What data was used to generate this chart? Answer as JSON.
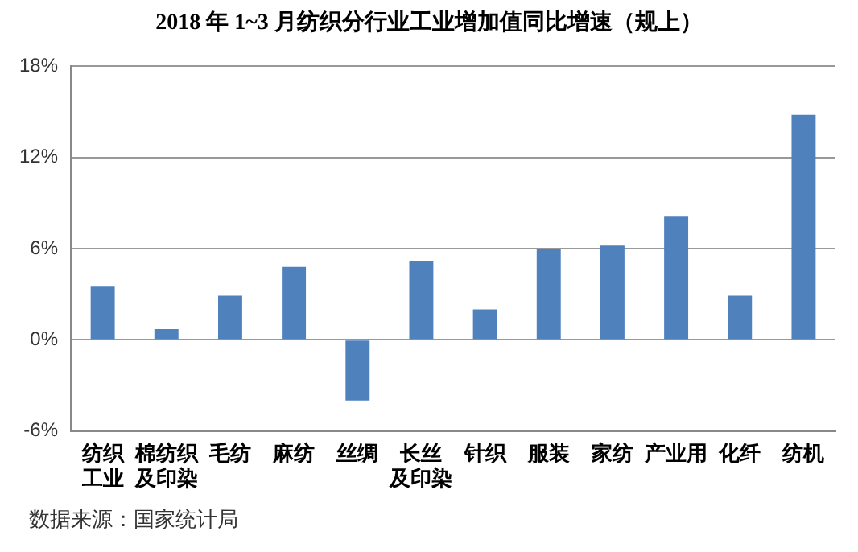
{
  "chart_data": {
    "type": "bar",
    "title": "2018 年 1~3 月纺织分行业工业增加值同比增速（规上）",
    "categories": [
      "纺织工业",
      "棉纺织及印染",
      "毛纺",
      "麻纺",
      "丝绸",
      "长丝及印染",
      "针织",
      "服装",
      "家纺",
      "产业用",
      "化纤",
      "纺机"
    ],
    "values": [
      3.5,
      0.7,
      2.9,
      4.8,
      -4.0,
      5.2,
      2.0,
      6.0,
      6.2,
      8.1,
      2.9,
      14.8
    ],
    "color": "#4f81bd",
    "ylim": [
      -6,
      18
    ],
    "yticks": [
      {
        "value": -6,
        "label": "-6%"
      },
      {
        "value": 0,
        "label": "0%"
      },
      {
        "value": 6,
        "label": "6%"
      },
      {
        "value": 12,
        "label": "12%"
      },
      {
        "value": 18,
        "label": "18%"
      }
    ],
    "grid": "y",
    "legend": false,
    "annotations": [
      "数据来源：国家统计局"
    ]
  }
}
